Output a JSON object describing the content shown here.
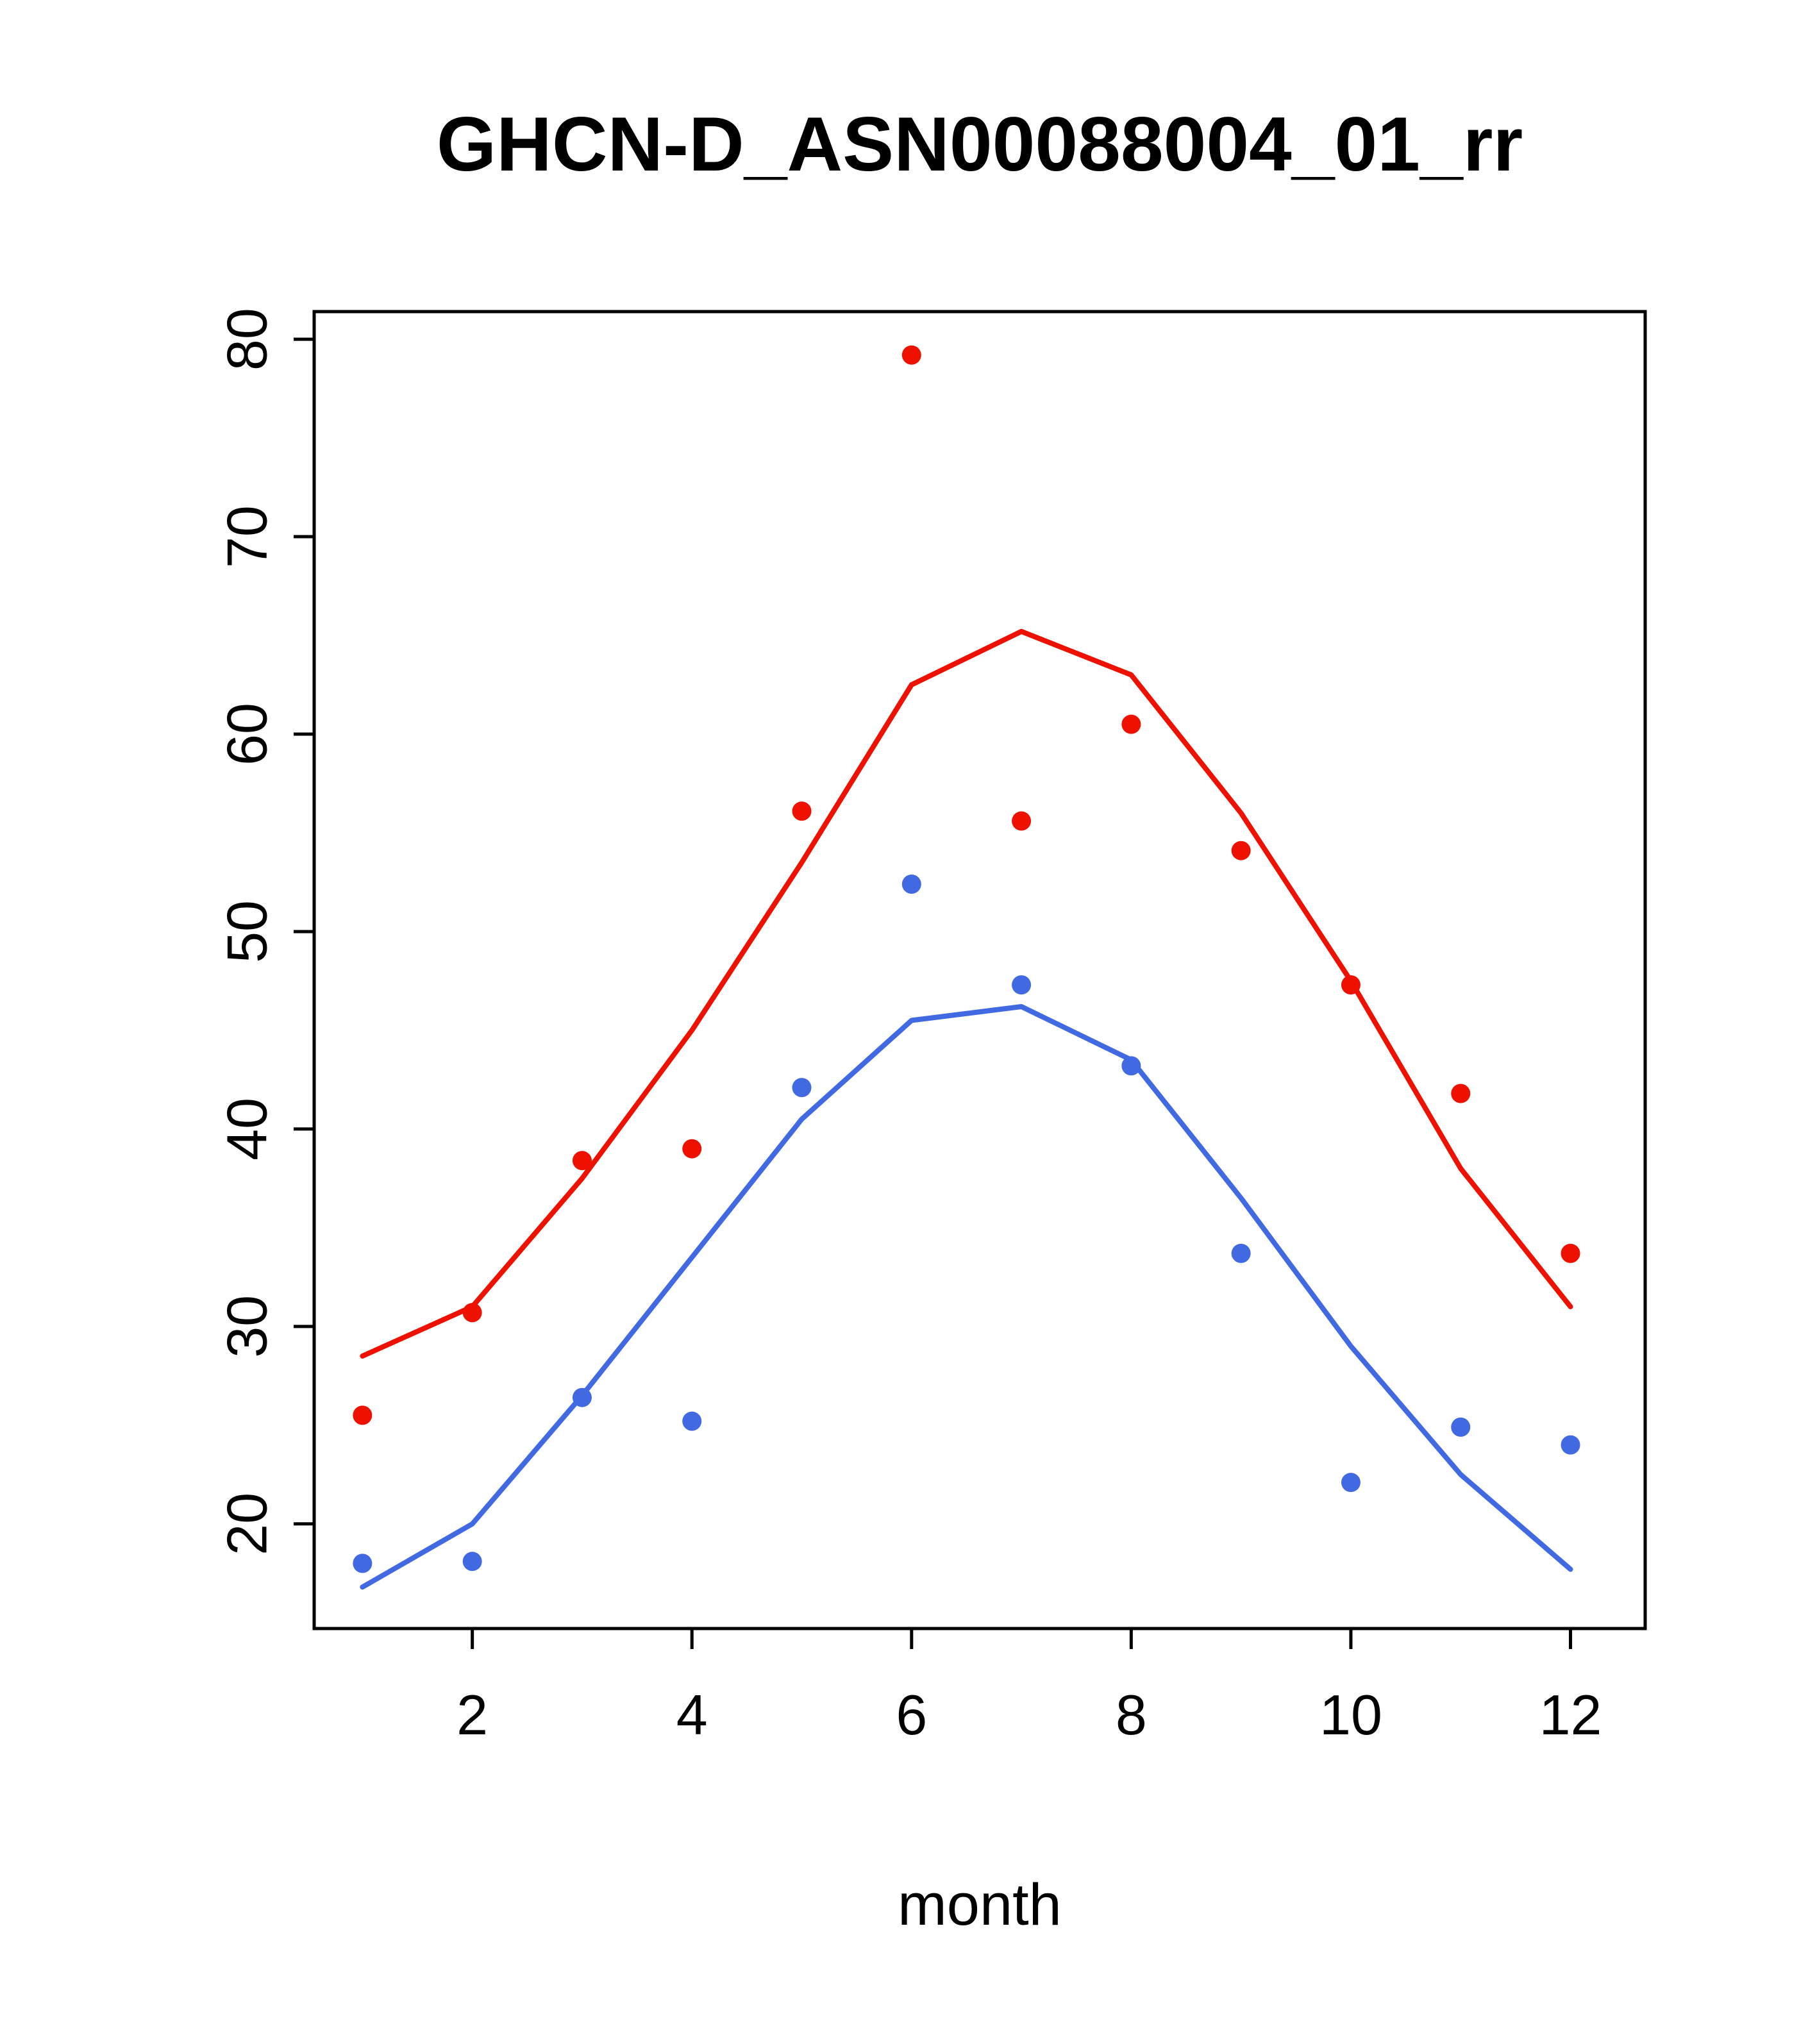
{
  "chart_data": {
    "type": "scatter",
    "title": "GHCN-D_ASN00088004_01_rr",
    "xlabel": "month",
    "ylabel": "",
    "x": [
      1,
      2,
      3,
      4,
      5,
      6,
      7,
      8,
      9,
      10,
      11,
      12
    ],
    "x_ticks": [
      2,
      4,
      6,
      8,
      10,
      12
    ],
    "y_ticks": [
      20,
      30,
      40,
      50,
      60,
      70,
      80
    ],
    "xlim": [
      0.56,
      12.68
    ],
    "ylim": [
      14.7,
      81.4
    ],
    "grid": false,
    "legend": "none",
    "colors": {
      "red_series": "#ee1100",
      "blue_series": "#4169e1",
      "axis": "#000000"
    },
    "series": [
      {
        "name": "red-smooth-line",
        "type": "line",
        "color": "#ee1100",
        "values": [
          28.5,
          31.0,
          37.5,
          45.0,
          53.5,
          62.5,
          65.2,
          63.0,
          56.0,
          47.5,
          38.0,
          31.0
        ]
      },
      {
        "name": "blue-smooth-line",
        "type": "line",
        "color": "#4169e1",
        "values": [
          16.8,
          20.0,
          26.5,
          33.5,
          40.5,
          45.5,
          46.2,
          43.5,
          36.5,
          29.0,
          22.5,
          17.7
        ]
      },
      {
        "name": "red-points",
        "type": "points",
        "color": "#ee1100",
        "values": [
          25.5,
          30.7,
          38.4,
          39.0,
          56.1,
          79.2,
          55.6,
          60.5,
          54.1,
          47.3,
          41.8,
          33.7
        ]
      },
      {
        "name": "blue-points",
        "type": "points",
        "color": "#4169e1",
        "values": [
          18.0,
          18.1,
          26.4,
          25.2,
          42.1,
          52.4,
          47.3,
          43.2,
          33.7,
          22.1,
          24.9,
          24.0
        ]
      }
    ]
  }
}
